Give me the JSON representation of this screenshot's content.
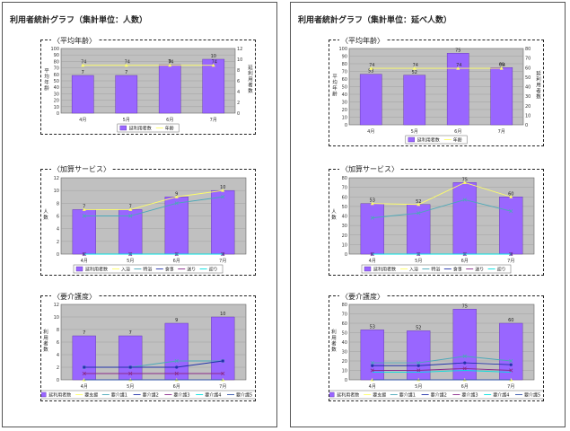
{
  "colors": {
    "bar": "#9966ff",
    "bar_stroke": "#5a2aa8",
    "plot_bg": "#c0c0c0",
    "yellow": "#ffff66",
    "line_teal": "#4aa8b8",
    "line_blue": "#2233aa",
    "line_purple": "#8a2a8a",
    "line_cyan": "#00e0e0"
  },
  "left": {
    "title": "利用者統計グラフ（集計単位：人数）",
    "age": {
      "section": "〈平均年齢〉",
      "chart_data": {
        "type": "bar",
        "categories": [
          "4月",
          "5月",
          "6月",
          "7月"
        ],
        "series": [
          {
            "name": "延利用者数",
            "kind": "bar",
            "axis": "right",
            "values": [
              7,
              7,
              9,
              10
            ],
            "labels": [
              "7",
              "7",
              "9",
              "10"
            ]
          },
          {
            "name": "年齢",
            "kind": "line",
            "axis": "left",
            "values": [
              74,
              74,
              74,
              74
            ],
            "labels": [
              "74",
              "74",
              "74",
              "74"
            ]
          }
        ],
        "ylim_left": [
          0,
          100
        ],
        "yticks_left": [
          0,
          10,
          20,
          30,
          40,
          50,
          60,
          70,
          80,
          90,
          100
        ],
        "ylim_right": [
          0,
          12
        ],
        "yticks_right": [
          0,
          2,
          4,
          6,
          8,
          10,
          12
        ],
        "ylabel_left": "平均年齢",
        "ylabel_right": "延利用者数",
        "legend": [
          "延利用者数",
          "年齢"
        ]
      }
    },
    "addon": {
      "section": "〈加算サービス〉",
      "chart_data": {
        "type": "bar",
        "categories": [
          "4月",
          "5月",
          "6月",
          "7月"
        ],
        "series": [
          {
            "name": "延利用者数",
            "kind": "bar",
            "values": [
              7,
              7,
              9,
              10
            ],
            "labels": [
              "7",
              "7",
              "9",
              "10"
            ]
          },
          {
            "name": "入浴",
            "kind": "line",
            "values": [
              7,
              7,
              9,
              10
            ]
          },
          {
            "name": "特浴",
            "kind": "line",
            "values": [
              6,
              6,
              8,
              9
            ]
          },
          {
            "name": "食事",
            "kind": "line",
            "values": [
              0,
              0,
              0,
              0
            ]
          },
          {
            "name": "送り",
            "kind": "line",
            "values": [
              0,
              0,
              0,
              0
            ]
          },
          {
            "name": "迎り",
            "kind": "line",
            "values": [
              0,
              0,
              0,
              0
            ]
          }
        ],
        "ylim": [
          0,
          12
        ],
        "yticks": [
          0,
          2,
          4,
          6,
          8,
          10,
          12
        ],
        "ylabel": "人数",
        "legend": [
          "延利用者数",
          "入浴",
          "特浴",
          "食事",
          "送り",
          "迎り"
        ]
      }
    },
    "care": {
      "section": "〈要介護度〉",
      "chart_data": {
        "type": "bar",
        "categories": [
          "4月",
          "5月",
          "6月",
          "7月"
        ],
        "series": [
          {
            "name": "延利用者数",
            "kind": "bar",
            "values": [
              7,
              7,
              9,
              10
            ],
            "labels": [
              "7",
              "7",
              "9",
              "10"
            ]
          },
          {
            "name": "要支援",
            "kind": "line",
            "values": [
              0,
              0,
              0,
              0
            ]
          },
          {
            "name": "要介護1",
            "kind": "line",
            "values": [
              2,
              2,
              3,
              3
            ]
          },
          {
            "name": "要介護2",
            "kind": "line",
            "values": [
              2,
              2,
              2,
              3
            ]
          },
          {
            "name": "要介護3",
            "kind": "line",
            "values": [
              1,
              1,
              1,
              1
            ]
          },
          {
            "name": "要介護4",
            "kind": "line",
            "values": [
              0,
              0,
              0,
              0
            ]
          },
          {
            "name": "要介護5",
            "kind": "line",
            "values": [
              0,
              0,
              0,
              0
            ]
          }
        ],
        "ylim": [
          0,
          12
        ],
        "yticks": [
          0,
          2,
          4,
          6,
          8,
          10,
          12
        ],
        "ylabel": "利用者数",
        "legend": [
          "延利用者数",
          "要支援",
          "要介護1",
          "要介護2",
          "要介護3",
          "要介護4",
          "要介護5"
        ]
      }
    }
  },
  "right": {
    "title": "利用者統計グラフ（集計単位：延べ人数）",
    "age": {
      "section": "〈平均年齢〉",
      "chart_data": {
        "type": "bar",
        "categories": [
          "4月",
          "5月",
          "6月",
          "7月"
        ],
        "series": [
          {
            "name": "延利用者数",
            "kind": "bar",
            "axis": "right",
            "values": [
              53,
              52,
              75,
              60
            ],
            "labels": [
              "53",
              "52",
              "75",
              "60"
            ]
          },
          {
            "name": "年齢",
            "kind": "line",
            "axis": "left",
            "values": [
              74,
              74,
              74,
              74
            ],
            "labels": [
              "74",
              "74",
              "74",
              "74"
            ]
          }
        ],
        "ylim_left": [
          0,
          100
        ],
        "yticks_left": [
          0,
          10,
          20,
          30,
          40,
          50,
          60,
          70,
          80,
          90,
          100
        ],
        "ylim_right": [
          0,
          80
        ],
        "yticks_right": [
          0,
          10,
          20,
          30,
          40,
          50,
          60,
          70,
          80
        ],
        "ylabel_left": "平均年齢",
        "ylabel_right": "延利用者数",
        "legend": [
          "延利用者数",
          "年齢"
        ]
      }
    },
    "addon": {
      "section": "〈加算サービス〉",
      "chart_data": {
        "type": "bar",
        "categories": [
          "4月",
          "5月",
          "6月",
          "7月"
        ],
        "series": [
          {
            "name": "延利用者数",
            "kind": "bar",
            "values": [
              53,
              52,
              75,
              60
            ],
            "labels": [
              "53",
              "52",
              "75",
              "60"
            ]
          },
          {
            "name": "入浴",
            "kind": "line",
            "values": [
              53,
              52,
              75,
              60
            ]
          },
          {
            "name": "特浴",
            "kind": "line",
            "values": [
              38,
              43,
              57,
              45
            ]
          },
          {
            "name": "食事",
            "kind": "line",
            "values": [
              0,
              0,
              0,
              0
            ]
          },
          {
            "name": "送り",
            "kind": "line",
            "values": [
              0,
              0,
              0,
              0
            ]
          },
          {
            "name": "迎り",
            "kind": "line",
            "values": [
              0,
              0,
              0,
              0
            ]
          }
        ],
        "ylim": [
          0,
          80
        ],
        "yticks": [
          0,
          10,
          20,
          30,
          40,
          50,
          60,
          70,
          80
        ],
        "ylabel": "人数",
        "legend": [
          "延利用者数",
          "入浴",
          "特浴",
          "食事",
          "送り",
          "迎り"
        ]
      }
    },
    "care": {
      "section": "〈要介護度〉",
      "chart_data": {
        "type": "bar",
        "categories": [
          "4月",
          "5月",
          "6月",
          "7月"
        ],
        "series": [
          {
            "name": "延利用者数",
            "kind": "bar",
            "values": [
              53,
              52,
              75,
              60
            ],
            "labels": [
              "53",
              "52",
              "75",
              "60"
            ]
          },
          {
            "name": "要支援",
            "kind": "line",
            "values": [
              0,
              0,
              0,
              0
            ]
          },
          {
            "name": "要介護1",
            "kind": "line",
            "values": [
              18,
              18,
              25,
              20
            ]
          },
          {
            "name": "要介護2",
            "kind": "line",
            "values": [
              15,
              15,
              18,
              16
            ]
          },
          {
            "name": "要介護3",
            "kind": "line",
            "values": [
              10,
              10,
              12,
              10
            ]
          },
          {
            "name": "要介護4",
            "kind": "line",
            "values": [
              8,
              8,
              10,
              8
            ]
          },
          {
            "name": "要介護5",
            "kind": "line",
            "values": [
              0,
              0,
              0,
              0
            ]
          }
        ],
        "ylim": [
          0,
          80
        ],
        "yticks": [
          0,
          10,
          20,
          30,
          40,
          50,
          60,
          70,
          80
        ],
        "ylabel": "利用者数",
        "legend": [
          "延利用者数",
          "要支援",
          "要介護1",
          "要介護2",
          "要介護3",
          "要介護4",
          "要介護5"
        ]
      }
    }
  }
}
